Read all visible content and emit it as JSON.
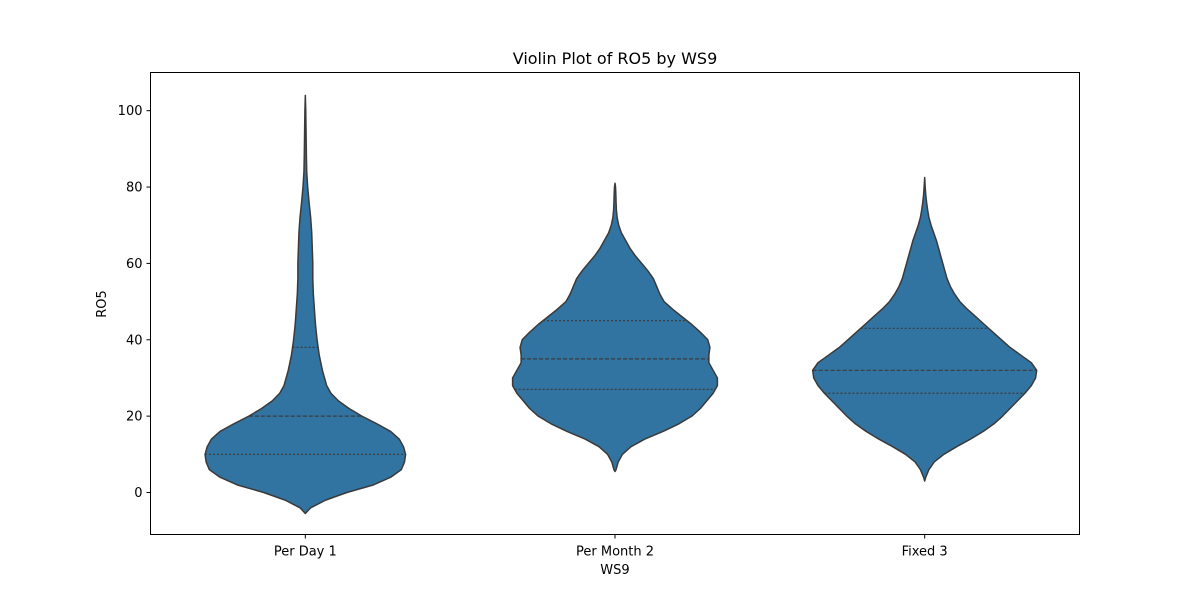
{
  "chart_data": {
    "type": "violin",
    "title": "Violin Plot of RO5 by WS9",
    "xlabel": "WS9",
    "ylabel": "RO5",
    "ylim": [
      -11,
      110
    ],
    "yticks": [
      0,
      20,
      40,
      60,
      80,
      100
    ],
    "categories": [
      "Per Day 1",
      "Per Month 2",
      "Fixed 3"
    ],
    "fill_color": "#3274a1",
    "edge_color": "#3a3a3a",
    "grid": false,
    "violins": [
      {
        "category": "Per Day 1",
        "quartiles": [
          10,
          20,
          38
        ],
        "profile": [
          [
            -5.5,
            0
          ],
          [
            -4,
            0.05
          ],
          [
            -2,
            0.19
          ],
          [
            0,
            0.39
          ],
          [
            2,
            0.64
          ],
          [
            4,
            0.8
          ],
          [
            6,
            0.9
          ],
          [
            8,
            0.93
          ],
          [
            10,
            0.94
          ],
          [
            12,
            0.92
          ],
          [
            14,
            0.88
          ],
          [
            16,
            0.8
          ],
          [
            18,
            0.67
          ],
          [
            20,
            0.53
          ],
          [
            22,
            0.41
          ],
          [
            24,
            0.31
          ],
          [
            26,
            0.24
          ],
          [
            28,
            0.2
          ],
          [
            30,
            0.18
          ],
          [
            32,
            0.16
          ],
          [
            34,
            0.145
          ],
          [
            36,
            0.13
          ],
          [
            38,
            0.12
          ],
          [
            40,
            0.11
          ],
          [
            44,
            0.095
          ],
          [
            48,
            0.085
          ],
          [
            52,
            0.075
          ],
          [
            56,
            0.07
          ],
          [
            60,
            0.07
          ],
          [
            64,
            0.065
          ],
          [
            68,
            0.06
          ],
          [
            72,
            0.05
          ],
          [
            76,
            0.035
          ],
          [
            80,
            0.022
          ],
          [
            84,
            0.013
          ],
          [
            88,
            0.01
          ],
          [
            92,
            0.008
          ],
          [
            96,
            0.006
          ],
          [
            100,
            0.004
          ],
          [
            104,
            0
          ]
        ]
      },
      {
        "category": "Per Month 2",
        "quartiles": [
          27,
          35,
          45
        ],
        "profile": [
          [
            5.5,
            0
          ],
          [
            6,
            0.01
          ],
          [
            8,
            0.03
          ],
          [
            10,
            0.07
          ],
          [
            12,
            0.15
          ],
          [
            14,
            0.28
          ],
          [
            16,
            0.45
          ],
          [
            18,
            0.6
          ],
          [
            20,
            0.72
          ],
          [
            22,
            0.8
          ],
          [
            24,
            0.86
          ],
          [
            26,
            0.92
          ],
          [
            28,
            0.96
          ],
          [
            30,
            0.96
          ],
          [
            32,
            0.92
          ],
          [
            34,
            0.88
          ],
          [
            36,
            0.88
          ],
          [
            38,
            0.89
          ],
          [
            40,
            0.87
          ],
          [
            42,
            0.8
          ],
          [
            44,
            0.72
          ],
          [
            46,
            0.63
          ],
          [
            48,
            0.54
          ],
          [
            50,
            0.46
          ],
          [
            52,
            0.42
          ],
          [
            54,
            0.39
          ],
          [
            56,
            0.36
          ],
          [
            58,
            0.31
          ],
          [
            60,
            0.25
          ],
          [
            62,
            0.19
          ],
          [
            64,
            0.14
          ],
          [
            66,
            0.1
          ],
          [
            68,
            0.06
          ],
          [
            70,
            0.035
          ],
          [
            72,
            0.02
          ],
          [
            74,
            0.013
          ],
          [
            76,
            0.01
          ],
          [
            78,
            0.008
          ],
          [
            80,
            0.005
          ],
          [
            81,
            0
          ]
        ]
      },
      {
        "category": "Fixed 3",
        "quartiles": [
          26,
          32,
          43
        ],
        "profile": [
          [
            3,
            0
          ],
          [
            4,
            0.01
          ],
          [
            6,
            0.04
          ],
          [
            8,
            0.09
          ],
          [
            10,
            0.18
          ],
          [
            12,
            0.3
          ],
          [
            14,
            0.43
          ],
          [
            16,
            0.55
          ],
          [
            18,
            0.65
          ],
          [
            20,
            0.73
          ],
          [
            22,
            0.8
          ],
          [
            24,
            0.87
          ],
          [
            26,
            0.94
          ],
          [
            28,
            1.0
          ],
          [
            30,
            1.04
          ],
          [
            32,
            1.05
          ],
          [
            34,
            1.0
          ],
          [
            36,
            0.9
          ],
          [
            38,
            0.8
          ],
          [
            40,
            0.72
          ],
          [
            42,
            0.64
          ],
          [
            44,
            0.56
          ],
          [
            46,
            0.48
          ],
          [
            48,
            0.4
          ],
          [
            50,
            0.33
          ],
          [
            52,
            0.28
          ],
          [
            54,
            0.24
          ],
          [
            56,
            0.21
          ],
          [
            58,
            0.19
          ],
          [
            60,
            0.17
          ],
          [
            62,
            0.15
          ],
          [
            64,
            0.13
          ],
          [
            66,
            0.11
          ],
          [
            68,
            0.085
          ],
          [
            70,
            0.06
          ],
          [
            72,
            0.04
          ],
          [
            74,
            0.028
          ],
          [
            76,
            0.018
          ],
          [
            78,
            0.01
          ],
          [
            80,
            0.005
          ],
          [
            82.5,
            0
          ]
        ]
      }
    ]
  }
}
